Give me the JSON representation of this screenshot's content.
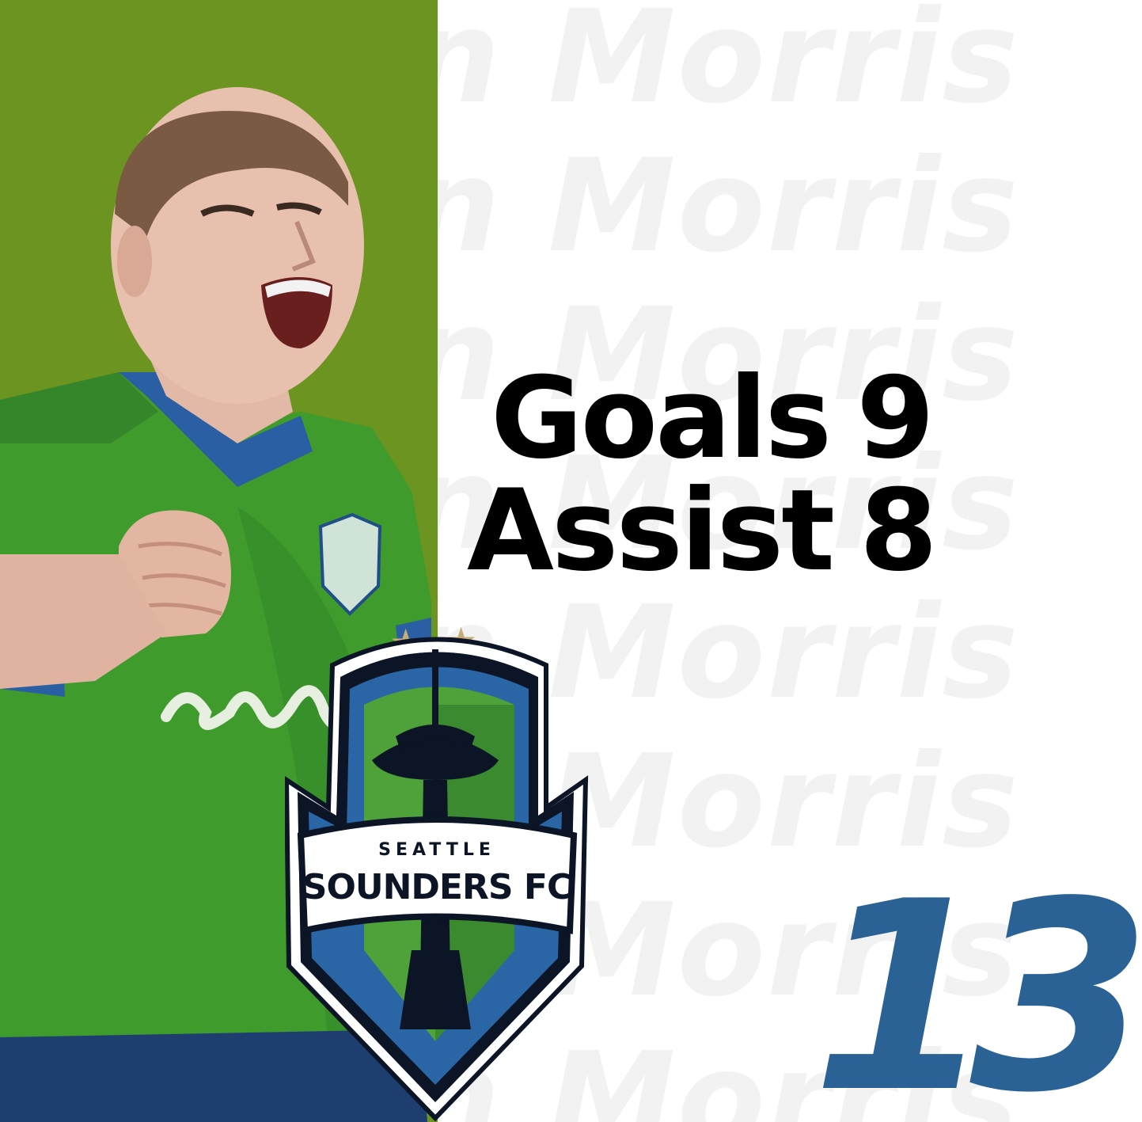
{
  "background": {
    "watermark_text": "Jordan Morris",
    "panel_color": "#6b9420",
    "watermark_color": "#f2f2f2"
  },
  "stats": {
    "goals_label": "Goals",
    "goals_value": "9",
    "assist_label": "Assist",
    "assist_value": "8"
  },
  "jersey": {
    "number": "13",
    "color": "#2a6296"
  },
  "crest": {
    "line1": "SEATTLE",
    "line2": "SOUNDERS FC",
    "star_glyph": "★"
  },
  "colors": {
    "shirt_green": "#3f9b2c",
    "crest_blue": "#2a66a6",
    "crest_navy": "#0b1526",
    "star_gold": "#c6ad78"
  }
}
